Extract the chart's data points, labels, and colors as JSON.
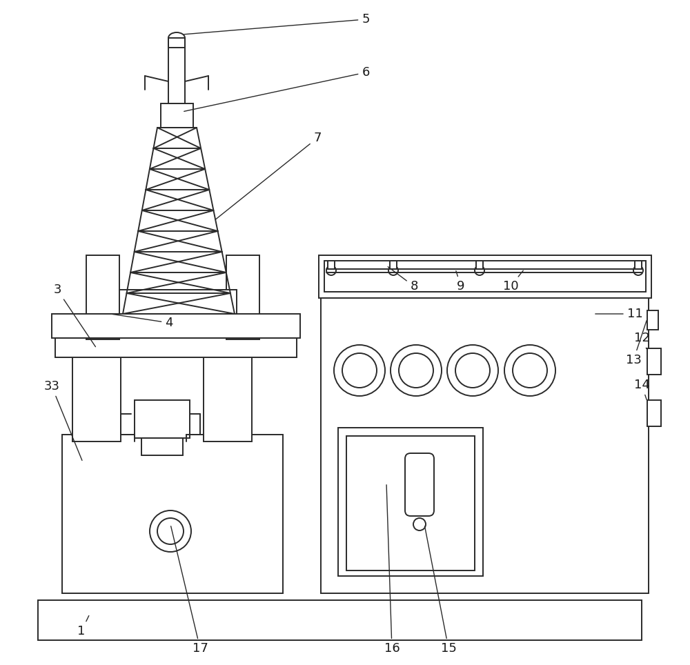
{
  "bg_color": "#ffffff",
  "lc": "#2a2a2a",
  "lw": 1.4,
  "figsize": [
    10.0,
    9.64
  ],
  "dpi": 100
}
